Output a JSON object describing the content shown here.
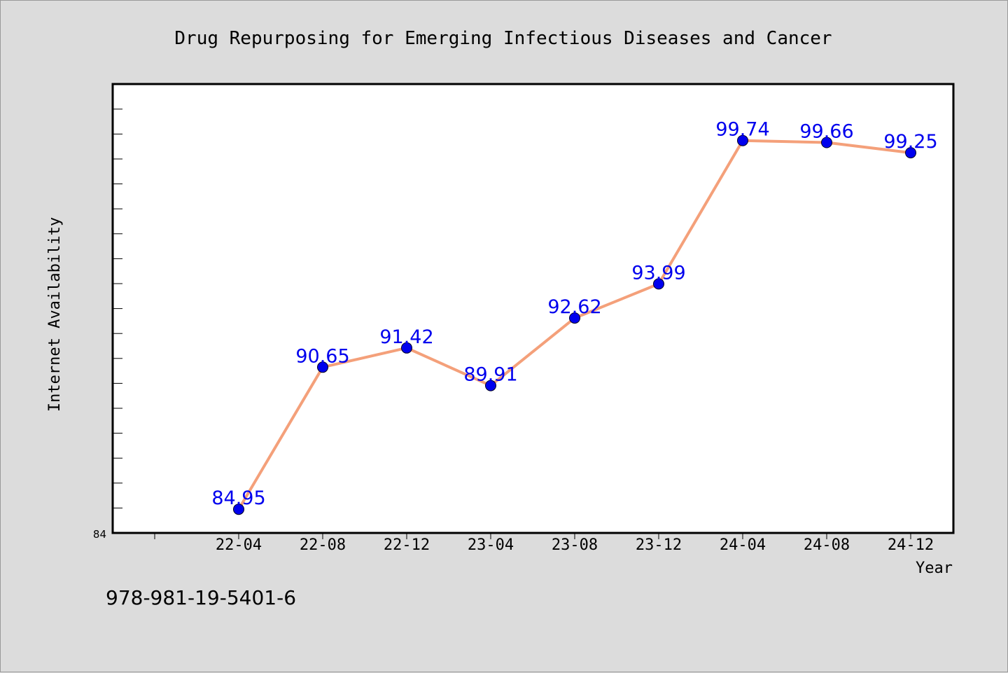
{
  "chart_data": {
    "type": "line",
    "title": "Drug Repurposing for Emerging Infectious Diseases and Cancer",
    "xlabel": "Year",
    "ylabel": "Internet Availability",
    "categories": [
      "22-04",
      "22-08",
      "22-12",
      "23-04",
      "23-08",
      "23-12",
      "24-04",
      "24-08",
      "24-12"
    ],
    "series": [
      {
        "values": [
          84.95,
          90.65,
          91.42,
          89.91,
          92.62,
          93.99,
          99.74,
          99.66,
          99.25
        ]
      }
    ],
    "data_labels": [
      "84.95",
      "90.65",
      "91.42",
      "89.91",
      "92.62",
      "93.99",
      "99.74",
      "99.66",
      "99.25"
    ],
    "y_tick_label": "84",
    "ylim": [
      84,
      102
    ],
    "grid": false,
    "legend": "none",
    "colors": {
      "line": "#f4a07a",
      "marker": "#0000ee",
      "label": "#0000ee",
      "background": "#dcdcdc",
      "plot_background": "#ffffff"
    }
  },
  "footer": {
    "isbn": "978-981-19-5401-6"
  }
}
